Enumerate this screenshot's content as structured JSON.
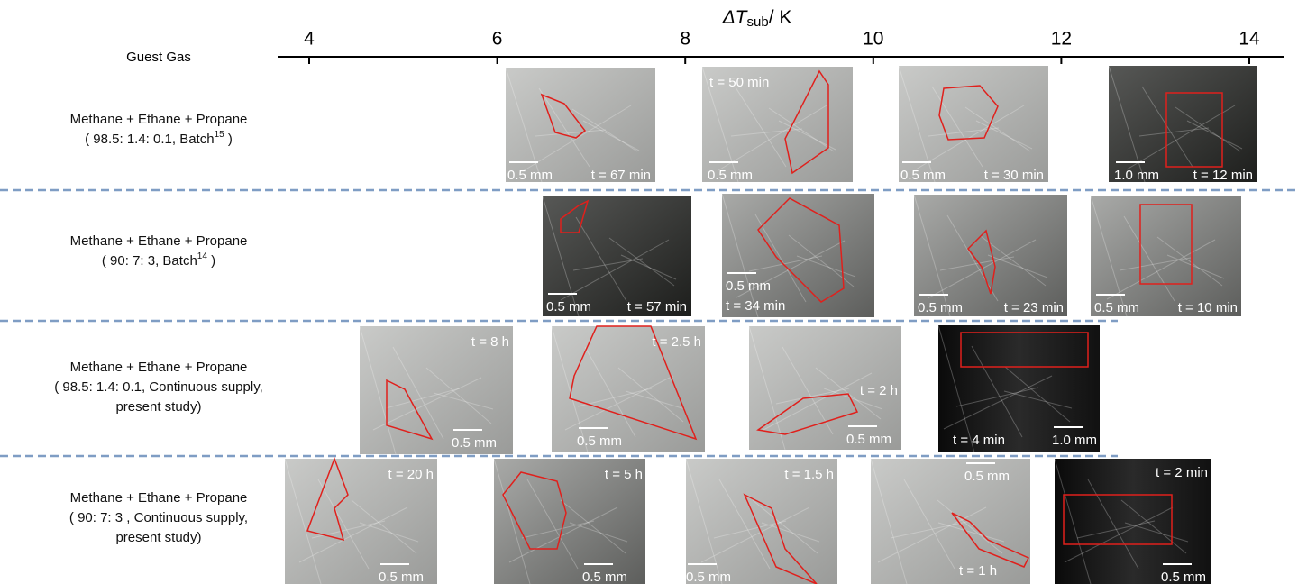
{
  "axis": {
    "label": {
      "main": "ΔT",
      "sub": "sub",
      "unit": "/ K"
    },
    "ticks": [
      4,
      6,
      8,
      10,
      12,
      14
    ]
  },
  "column_header": "Guest Gas",
  "rows": [
    {
      "lines": [
        "Methane + Ethane + Propane",
        "( 98.5: 1.4: 0.1, Batch"
      ],
      "ref": "15",
      "ref_close": " )",
      "images": [
        {
          "scale": "0.5 mm",
          "time": "t = 67 min"
        },
        {
          "scale": "0.5 mm",
          "time": "t = 50 min"
        },
        {
          "scale": "0.5 mm",
          "time": "t = 30 min"
        },
        {
          "scale": "1.0 mm",
          "time": "t = 12 min"
        }
      ]
    },
    {
      "lines": [
        "Methane + Ethane + Propane",
        "( 90: 7: 3, Batch"
      ],
      "ref": "14",
      "ref_close": " )",
      "images": [
        {
          "scale": "0.5 mm",
          "time": "t = 57 min"
        },
        {
          "scale": "0.5 mm",
          "time": "t = 34 min"
        },
        {
          "scale": "0.5 mm",
          "time": "t = 23 min"
        },
        {
          "scale": "0.5 mm",
          "time": "t = 10 min"
        }
      ]
    },
    {
      "lines": [
        "Methane + Ethane + Propane",
        "( 98.5: 1.4: 0.1, Continuous supply,",
        "present study)"
      ],
      "images": [
        {
          "scale": "0.5 mm",
          "time": "t = 8 h"
        },
        {
          "scale": "0.5 mm",
          "time": "t = 2.5 h"
        },
        {
          "scale": "0.5 mm",
          "time": "t = 2 h"
        },
        {
          "scale": "1.0 mm",
          "time": "t = 4 min"
        }
      ]
    },
    {
      "lines": [
        "Methane + Ethane + Propane",
        "( 90: 7: 3 , Continuous supply,",
        "present study)"
      ],
      "images": [
        {
          "scale": "0.5 mm",
          "time": "t = 20 h"
        },
        {
          "scale": "0.5 mm",
          "time": "t = 5 h"
        },
        {
          "scale": "0.5 mm",
          "time": "t = 1.5 h"
        },
        {
          "scale": "0.5 mm",
          "time": "t = 1 h"
        },
        {
          "scale": "0.5 mm",
          "time": "t = 2 min"
        }
      ]
    }
  ]
}
